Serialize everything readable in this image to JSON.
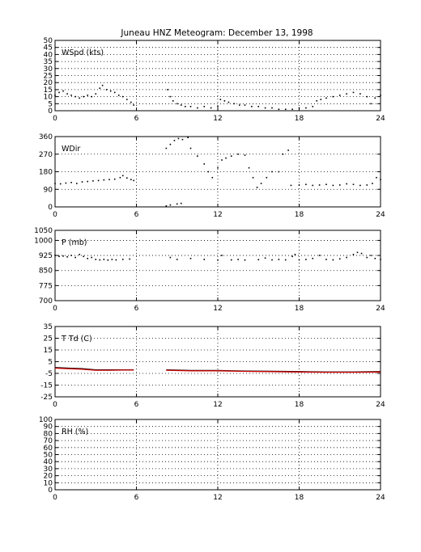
{
  "title": "Juneau HNZ Meteogram:   December 13, 1998",
  "chart_data": [
    {
      "id": "wspd",
      "type": "scatter",
      "panel_label": "WSpd (kts)",
      "xlim": [
        0,
        24
      ],
      "xticks": [
        0,
        6,
        12,
        18,
        24
      ],
      "ylim": [
        0,
        50
      ],
      "yticks": [
        0,
        5,
        10,
        15,
        20,
        25,
        30,
        35,
        40,
        45,
        50
      ],
      "grid": true,
      "series": [
        {
          "color": "#000000",
          "points": [
            [
              0,
              11
            ],
            [
              0.3,
              13
            ],
            [
              0.6,
              14
            ],
            [
              0.9,
              12
            ],
            [
              1.2,
              11
            ],
            [
              1.5,
              10
            ],
            [
              1.8,
              9
            ],
            [
              2.1,
              10
            ],
            [
              2.4,
              11
            ],
            [
              2.7,
              10
            ],
            [
              3,
              12
            ],
            [
              3.3,
              16
            ],
            [
              3.5,
              18
            ],
            [
              3.8,
              15
            ],
            [
              4.1,
              14
            ],
            [
              4.4,
              13
            ],
            [
              4.7,
              11
            ],
            [
              5,
              10
            ],
            [
              5.3,
              8
            ],
            [
              5.6,
              6
            ],
            [
              5.8,
              4
            ],
            [
              8.3,
              15
            ],
            [
              8.5,
              10
            ],
            [
              8.7,
              7
            ],
            [
              9,
              5
            ],
            [
              9.3,
              4
            ],
            [
              9.6,
              3
            ],
            [
              10,
              3
            ],
            [
              10.5,
              2
            ],
            [
              11,
              3
            ],
            [
              11.5,
              2
            ],
            [
              12,
              3
            ],
            [
              12.2,
              8
            ],
            [
              12.5,
              7
            ],
            [
              12.8,
              6
            ],
            [
              13.2,
              5
            ],
            [
              13.6,
              4
            ],
            [
              14,
              4
            ],
            [
              14.5,
              3
            ],
            [
              15,
              3
            ],
            [
              15.5,
              2
            ],
            [
              16,
              2
            ],
            [
              16.5,
              1
            ],
            [
              17,
              1
            ],
            [
              17.5,
              1
            ],
            [
              18,
              2
            ],
            [
              18.5,
              2
            ],
            [
              19,
              3
            ],
            [
              19.3,
              7
            ],
            [
              19.6,
              8
            ],
            [
              20,
              9
            ],
            [
              20.5,
              10
            ],
            [
              21,
              11
            ],
            [
              21.5,
              12
            ],
            [
              22,
              13
            ],
            [
              22.5,
              12
            ],
            [
              23,
              10
            ],
            [
              23.3,
              5
            ],
            [
              23.6,
              9
            ],
            [
              24,
              11
            ]
          ]
        }
      ]
    },
    {
      "id": "wdir",
      "type": "scatter",
      "panel_label": "WDir",
      "xlim": [
        0,
        24
      ],
      "xticks": [
        0,
        6,
        12,
        18,
        24
      ],
      "ylim": [
        0,
        360
      ],
      "yticks": [
        0,
        90,
        180,
        270,
        360
      ],
      "grid": true,
      "series": [
        {
          "color": "#000000",
          "points": [
            [
              0,
              120
            ],
            [
              0.4,
              118
            ],
            [
              0.8,
              122
            ],
            [
              1.2,
              125
            ],
            [
              1.6,
              120
            ],
            [
              2,
              128
            ],
            [
              2.4,
              130
            ],
            [
              2.8,
              133
            ],
            [
              3.2,
              135
            ],
            [
              3.6,
              138
            ],
            [
              4,
              140
            ],
            [
              4.4,
              142
            ],
            [
              4.8,
              150
            ],
            [
              5,
              160
            ],
            [
              5.3,
              148
            ],
            [
              5.6,
              140
            ],
            [
              5.8,
              135
            ],
            [
              8.2,
              5
            ],
            [
              8.5,
              10
            ],
            [
              9,
              15
            ],
            [
              9.3,
              18
            ],
            [
              8.2,
              300
            ],
            [
              8.5,
              320
            ],
            [
              8.8,
              340
            ],
            [
              9.1,
              350
            ],
            [
              9.4,
              345
            ],
            [
              9.8,
              355
            ],
            [
              10,
              300
            ],
            [
              10.5,
              260
            ],
            [
              11,
              220
            ],
            [
              11.3,
              180
            ],
            [
              11.6,
              150
            ],
            [
              12,
              200
            ],
            [
              12.3,
              240
            ],
            [
              12.6,
              250
            ],
            [
              13,
              260
            ],
            [
              13.5,
              270
            ],
            [
              14,
              265
            ],
            [
              14.3,
              200
            ],
            [
              14.6,
              150
            ],
            [
              14.9,
              100
            ],
            [
              15.2,
              120
            ],
            [
              15.6,
              150
            ],
            [
              16,
              180
            ],
            [
              16.5,
              180
            ],
            [
              16.8,
              270
            ],
            [
              17.2,
              290
            ],
            [
              17.4,
              110
            ],
            [
              18,
              112
            ],
            [
              18.5,
              115
            ],
            [
              19,
              110
            ],
            [
              19.5,
              112
            ],
            [
              20,
              115
            ],
            [
              20.5,
              110
            ],
            [
              21,
              112
            ],
            [
              21.5,
              118
            ],
            [
              22,
              115
            ],
            [
              22.5,
              110
            ],
            [
              23,
              112
            ],
            [
              23.4,
              120
            ],
            [
              23.7,
              150
            ],
            [
              24,
              140
            ]
          ]
        }
      ]
    },
    {
      "id": "pressure",
      "type": "scatter",
      "panel_label": "P (mb)",
      "xlim": [
        0,
        24
      ],
      "xticks": [
        0,
        6,
        12,
        18,
        24
      ],
      "ylim": [
        700,
        1050
      ],
      "yticks": [
        700,
        775,
        850,
        925,
        1000,
        1050
      ],
      "grid": true,
      "series": [
        {
          "color": "#000000",
          "points": [
            [
              0,
              925
            ],
            [
              0.3,
              920
            ],
            [
              0.6,
              922
            ],
            [
              0.9,
              918
            ],
            [
              1.2,
              925
            ],
            [
              1.5,
              915
            ],
            [
              1.8,
              930
            ],
            [
              2.1,
              920
            ],
            [
              2.4,
              910
            ],
            [
              2.7,
              915
            ],
            [
              3,
              905
            ],
            [
              3.3,
              903
            ],
            [
              3.6,
              905
            ],
            [
              3.9,
              902
            ],
            [
              4.2,
              905
            ],
            [
              4.5,
              903
            ],
            [
              5,
              905
            ],
            [
              5.5,
              907
            ],
            [
              8.5,
              915
            ],
            [
              9,
              905
            ],
            [
              10,
              910
            ],
            [
              11,
              905
            ],
            [
              12,
              902
            ],
            [
              12.3,
              925
            ],
            [
              13,
              903
            ],
            [
              13.5,
              905
            ],
            [
              14,
              902
            ],
            [
              15,
              904
            ],
            [
              15.5,
              912
            ],
            [
              16,
              903
            ],
            [
              16.5,
              905
            ],
            [
              17,
              903
            ],
            [
              17.5,
              920
            ],
            [
              17.7,
              930
            ],
            [
              18,
              903
            ],
            [
              18.5,
              905
            ],
            [
              19,
              910
            ],
            [
              19.5,
              925
            ],
            [
              20,
              905
            ],
            [
              20.5,
              903
            ],
            [
              21,
              908
            ],
            [
              21.5,
              915
            ],
            [
              22,
              930
            ],
            [
              22.3,
              940
            ],
            [
              22.6,
              935
            ],
            [
              23,
              915
            ],
            [
              23.3,
              925
            ],
            [
              23.6,
              910
            ],
            [
              24,
              905
            ]
          ]
        }
      ]
    },
    {
      "id": "temp",
      "type": "line",
      "panel_label": "T Td (C)",
      "xlim": [
        0,
        24
      ],
      "xticks": [
        0,
        6,
        12,
        18,
        24
      ],
      "ylim": [
        -25,
        35
      ],
      "yticks": [
        -25,
        -15,
        -5,
        5,
        15,
        25,
        35
      ],
      "grid": true,
      "series": [
        {
          "color": "#000000",
          "segments": [
            [
              [
                0,
                0
              ],
              [
                1,
                -0.5
              ],
              [
                2,
                -1
              ],
              [
                3,
                -2
              ],
              [
                4,
                -2
              ],
              [
                5,
                -2
              ],
              [
                5.8,
                -2
              ]
            ],
            [
              [
                8.2,
                -2
              ],
              [
                10,
                -2.5
              ],
              [
                12,
                -2.5
              ],
              [
                14,
                -3
              ],
              [
                16,
                -3.2
              ],
              [
                18,
                -3.5
              ],
              [
                20,
                -3.8
              ],
              [
                22,
                -3.8
              ],
              [
                24,
                -3.5
              ]
            ]
          ]
        },
        {
          "color": "#cc0000",
          "segments": [
            [
              [
                0,
                -0.5
              ],
              [
                1,
                -1
              ],
              [
                2,
                -1.5
              ],
              [
                3,
                -2.3
              ],
              [
                4,
                -2.3
              ],
              [
                5,
                -2.2
              ],
              [
                5.8,
                -2.2
              ]
            ],
            [
              [
                8.2,
                -2.3
              ],
              [
                10,
                -2.8
              ],
              [
                12,
                -2.8
              ],
              [
                14,
                -3.3
              ],
              [
                16,
                -3.5
              ],
              [
                18,
                -3.8
              ],
              [
                20,
                -4
              ],
              [
                22,
                -4
              ],
              [
                24,
                -3.8
              ]
            ]
          ]
        }
      ]
    },
    {
      "id": "rh",
      "type": "line",
      "panel_label": "RH (%)",
      "xlim": [
        0,
        24
      ],
      "xticks": [
        0,
        6,
        12,
        18,
        24
      ],
      "ylim": [
        0,
        100
      ],
      "yticks": [
        0,
        10,
        20,
        30,
        40,
        50,
        60,
        70,
        80,
        90,
        100
      ],
      "grid": true,
      "series": []
    }
  ]
}
